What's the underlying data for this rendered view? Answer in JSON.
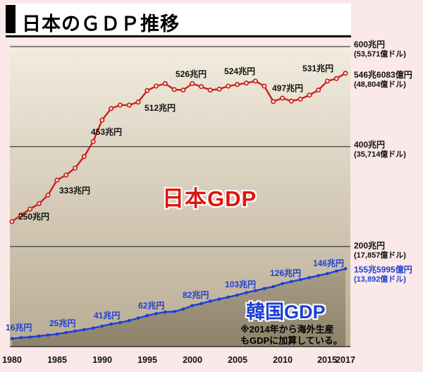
{
  "title": "日本のＧＤＰ推移",
  "chart_data": {
    "type": "line",
    "title": "日本のＧＤＰ推移",
    "x": [
      1980,
      1981,
      1982,
      1983,
      1984,
      1985,
      1986,
      1987,
      1988,
      1989,
      1990,
      1991,
      1992,
      1993,
      1994,
      1995,
      1996,
      1997,
      1998,
      1999,
      2000,
      2001,
      2002,
      2003,
      2004,
      2005,
      2006,
      2007,
      2008,
      2009,
      2010,
      2011,
      2012,
      2013,
      2014,
      2015,
      2016,
      2017
    ],
    "series": [
      {
        "name": "日本GDP",
        "color": "#c9211e",
        "values": [
          250,
          263,
          275,
          286,
          303,
          333,
          343,
          357,
          380,
          410,
          453,
          476,
          483,
          483,
          489,
          512,
          521,
          526,
          514,
          513,
          526,
          520,
          513,
          515,
          521,
          524,
          527,
          531,
          521,
          490,
          497,
          491,
          495,
          503,
          513,
          531,
          536,
          546.6
        ]
      },
      {
        "name": "韓国GDP",
        "color": "#1d3fd4",
        "values": [
          16,
          18,
          19,
          21,
          23,
          25,
          28,
          31,
          34,
          37,
          41,
          45,
          48,
          52,
          57,
          62,
          66,
          69,
          70,
          75,
          82,
          86,
          91,
          95,
          99,
          103,
          108,
          112,
          116,
          120,
          126,
          130,
          134,
          138,
          142,
          146,
          151,
          155.6
        ]
      }
    ],
    "ylim": [
      0,
      600
    ],
    "y_gridlines": [
      200,
      400,
      600
    ],
    "x_ticks": [
      1980,
      1985,
      1990,
      1995,
      2000,
      2005,
      2010,
      2015,
      2017
    ],
    "unit": "兆円",
    "grid": true,
    "legend_position": "inline",
    "final_values": {
      "日本GDP": "546兆6083億円 (48,804億ドル)",
      "韓国GDP": "155兆5995億円 (13,892億ドル)"
    }
  },
  "y_axis": [
    {
      "label": "600兆円",
      "sub": "(53,571億ドル)"
    },
    {
      "label": "400兆円",
      "sub": "(35,714億ドル)"
    },
    {
      "label": "200兆円",
      "sub": "(17,857億ドル)"
    }
  ],
  "end_labels": {
    "japan": {
      "main": "546兆6083億円",
      "sub": "(48,804億ドル)"
    },
    "korea": {
      "main": "155兆5995億円",
      "sub": "(13,892億ドル)"
    }
  },
  "x_axis": [
    "1980",
    "1985",
    "1990",
    "1995",
    "2000",
    "2005",
    "2010",
    "2015",
    "2017"
  ],
  "annotations": {
    "japan": [
      "250兆円",
      "333兆円",
      "453兆円",
      "512兆円",
      "526兆円",
      "524兆円",
      "497兆円",
      "531兆円"
    ],
    "korea": [
      "16兆円",
      "25兆円",
      "41兆円",
      "62兆円",
      "82兆円",
      "103兆円",
      "126兆円",
      "146兆円"
    ]
  },
  "series_labels": {
    "japan": "日本GDP",
    "korea": "韓国GDP"
  },
  "note": {
    "line1": "※2014年から海外生産",
    "line2": "もGDPに加算している。"
  },
  "colors": {
    "japan_line": "#c9211e",
    "korea_line": "#1d3fd4",
    "page_bg": "#fbe8e8"
  }
}
